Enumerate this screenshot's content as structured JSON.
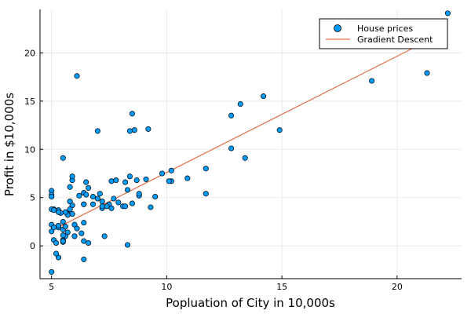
{
  "chart_data": {
    "type": "scatter",
    "title": "",
    "xlabel": "Popluation of City in 10,000s",
    "ylabel": "Profit in $10,000s",
    "xlim": [
      4.5,
      22.8
    ],
    "ylim": [
      -3.4,
      24.5
    ],
    "xticks": [
      5,
      10,
      15,
      20
    ],
    "yticks": [
      0,
      5,
      10,
      15,
      20
    ],
    "grid": true,
    "legend_position": "top-right",
    "series": [
      {
        "name": "House prices",
        "kind": "scatter",
        "color": "#009af9",
        "points": [
          [
            6.1,
            17.6
          ],
          [
            5.5,
            9.1
          ],
          [
            8.5,
            13.7
          ],
          [
            7.0,
            11.9
          ],
          [
            5.9,
            6.8
          ],
          [
            8.4,
            11.9
          ],
          [
            7.5,
            4.3
          ],
          [
            8.6,
            12.0
          ],
          [
            6.5,
            6.6
          ],
          [
            5.1,
            3.8
          ],
          [
            5.7,
            3.3
          ],
          [
            14.2,
            15.5
          ],
          [
            5.7,
            3.2
          ],
          [
            8.8,
            5.2
          ],
          [
            6.4,
            4.3
          ],
          [
            5.5,
            0.6
          ],
          [
            5.0,
            3.8
          ],
          [
            5.1,
            3.7
          ],
          [
            10.9,
            7.0
          ],
          [
            9.2,
            12.1
          ],
          [
            5.0,
            5.7
          ],
          [
            8.1,
            4.1
          ],
          [
            5.7,
            1.4
          ],
          [
            6.0,
            1.0
          ],
          [
            7.6,
            6.7
          ],
          [
            5.0,
            5.3
          ],
          [
            5.0,
            1.5
          ],
          [
            9.1,
            6.9
          ],
          [
            12.8,
            13.5
          ],
          [
            6.4,
            2.4
          ],
          [
            6.0,
            1.0
          ],
          [
            7.0,
            4.9
          ],
          [
            8.8,
            5.4
          ],
          [
            5.6,
            3.5
          ],
          [
            6.8,
            5.1
          ],
          [
            5.9,
            4.2
          ],
          [
            5.3,
            1.9
          ],
          [
            12.8,
            10.1
          ],
          [
            5.8,
            3.8
          ],
          [
            6.2,
            5.2
          ],
          [
            5.9,
            3.3
          ],
          [
            6.4,
            0.5
          ],
          [
            7.2,
            3.9
          ],
          [
            5.3,
            3.7
          ],
          [
            7.6,
            3.9
          ],
          [
            6.4,
            4.3
          ],
          [
            5.0,
            2.2
          ],
          [
            5.3,
            2.1
          ],
          [
            6.8,
            4.3
          ],
          [
            5.5,
            0.4
          ],
          [
            21.3,
            17.9
          ],
          [
            5.5,
            0.5
          ],
          [
            5.8,
            4.6
          ],
          [
            5.1,
            0.6
          ],
          [
            6.6,
            0.3
          ],
          [
            8.2,
            4.1
          ],
          [
            8.5,
            4.4
          ],
          [
            7.2,
            4.6
          ],
          [
            5.5,
            1.7
          ],
          [
            5.8,
            6.1
          ],
          [
            11.7,
            5.4
          ],
          [
            18.9,
            17.1
          ],
          [
            13.2,
            14.7
          ],
          [
            6.6,
            6.0
          ],
          [
            5.6,
            1.0
          ],
          [
            7.3,
            1.0
          ],
          [
            6.3,
            1.3
          ],
          [
            5.4,
            3.4
          ],
          [
            13.4,
            9.1
          ],
          [
            5.1,
            1.9
          ],
          [
            5.5,
            2.5
          ],
          [
            5.3,
            -1.2
          ],
          [
            6.0,
            2.2
          ],
          [
            5.3,
            3.5
          ],
          [
            6.4,
            -1.4
          ],
          [
            5.0,
            -2.7
          ],
          [
            5.2,
            0.3
          ],
          [
            5.6,
            2.0
          ],
          [
            6.1,
            1.8
          ],
          [
            5.0,
            5.1
          ],
          [
            8.3,
            5.8
          ],
          [
            7.8,
            6.8
          ],
          [
            7.4,
            4.1
          ],
          [
            9.5,
            5.1
          ],
          [
            8.4,
            7.2
          ],
          [
            10.2,
            6.7
          ],
          [
            11.7,
            8.0
          ],
          [
            10.2,
            7.8
          ],
          [
            7.7,
            4.9
          ],
          [
            8.7,
            6.8
          ],
          [
            9.3,
            4.0
          ],
          [
            14.9,
            12.0
          ],
          [
            5.2,
            -0.8
          ],
          [
            10.1,
            6.7
          ],
          [
            6.4,
            5.5
          ],
          [
            8.2,
            6.6
          ],
          [
            7.9,
            4.5
          ],
          [
            5.9,
            7.2
          ],
          [
            8.3,
            0.1
          ],
          [
            9.8,
            7.5
          ],
          [
            7.1,
            5.4
          ],
          [
            6.5,
            5.3
          ],
          [
            7.2,
            4.1
          ],
          [
            5.5,
            1.1
          ],
          [
            22.2,
            24.1
          ]
        ]
      },
      {
        "name": "Gradient Descent",
        "kind": "line",
        "color": "#e26f46",
        "points": [
          [
            5.1,
            1.7
          ],
          [
            22.2,
            22.3
          ]
        ]
      }
    ]
  }
}
